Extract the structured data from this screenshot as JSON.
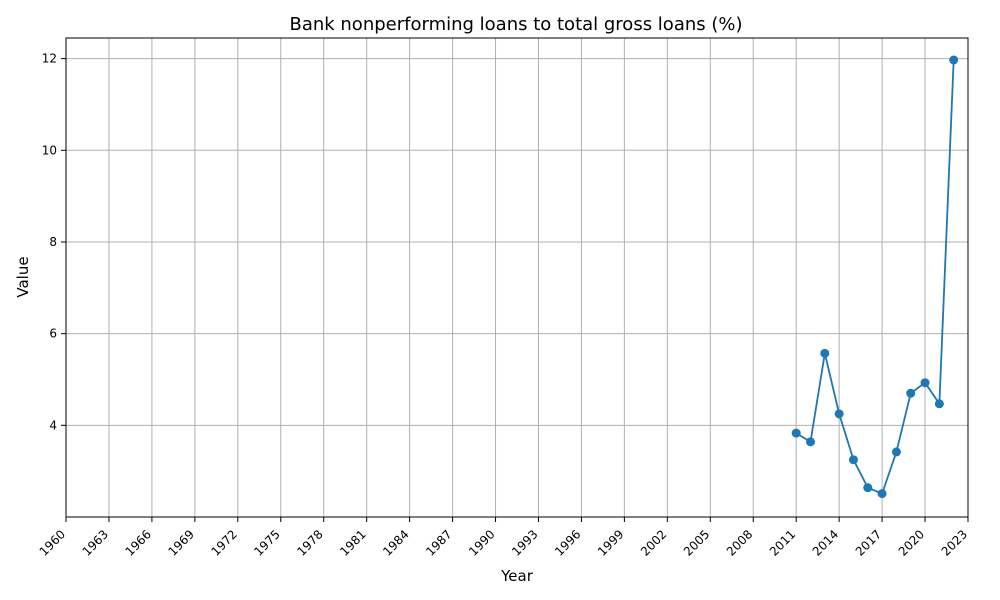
{
  "chart_data": {
    "type": "line",
    "title": "Bank nonperforming loans to total gross loans (%)",
    "xlabel": "Year",
    "ylabel": "Value",
    "xlim": [
      1960,
      2023
    ],
    "ylim": [
      2.0,
      12.45
    ],
    "xticks": [
      1960,
      1963,
      1966,
      1969,
      1972,
      1975,
      1978,
      1981,
      1984,
      1987,
      1990,
      1993,
      1996,
      1999,
      2002,
      2005,
      2008,
      2011,
      2014,
      2017,
      2020,
      2023
    ],
    "yticks": [
      4,
      6,
      8,
      10,
      12
    ],
    "grid": true,
    "legend": "none",
    "series": [
      {
        "color": "#1f77b4",
        "x": [
          2011,
          2012,
          2013,
          2014,
          2015,
          2016,
          2017,
          2018,
          2019,
          2020,
          2021,
          2022
        ],
        "y": [
          3.83,
          3.64,
          5.57,
          4.25,
          3.25,
          2.64,
          2.51,
          3.42,
          4.7,
          4.93,
          4.47,
          11.97
        ]
      }
    ]
  }
}
